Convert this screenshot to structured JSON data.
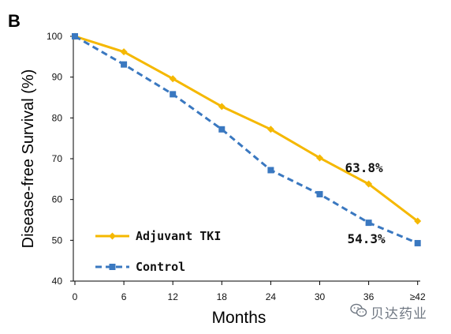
{
  "panel_label": "B",
  "watermark": "贝达药业",
  "colors": {
    "adjuvant": "#f5b800",
    "control": "#3a78c0",
    "axis": "#000000",
    "tick_label": "#111111",
    "watermark": "#6f7782"
  },
  "icons": {
    "watermark": "wechat-logo-icon"
  },
  "chart_data": {
    "type": "line",
    "title": "",
    "xlabel": "Months",
    "ylabel": "Disease-free Survival (%)",
    "categories": [
      "0",
      "6",
      "12",
      "18",
      "24",
      "30",
      "36",
      "≥42"
    ],
    "ylim": [
      40,
      100
    ],
    "yticks": [
      "40",
      "50",
      "60",
      "70",
      "80",
      "90",
      "100"
    ],
    "grid": false,
    "legend_position": "bottom-left",
    "series": [
      {
        "name": "Adjuvant TKI",
        "color": "#f5b800",
        "line_style": "solid",
        "marker": "diamond",
        "values": [
          100,
          96.2,
          89.6,
          82.8,
          77.2,
          70.2,
          63.8,
          54.7
        ]
      },
      {
        "name": "Control",
        "color": "#3a78c0",
        "line_style": "dashed",
        "marker": "square",
        "values": [
          100,
          93.1,
          85.8,
          77.2,
          67.2,
          61.3,
          54.3,
          49.3
        ]
      }
    ],
    "annotations": [
      {
        "text": "63.8%",
        "series": 0,
        "category": "36"
      },
      {
        "text": "54.3%",
        "series": 1,
        "category": "36"
      }
    ]
  }
}
